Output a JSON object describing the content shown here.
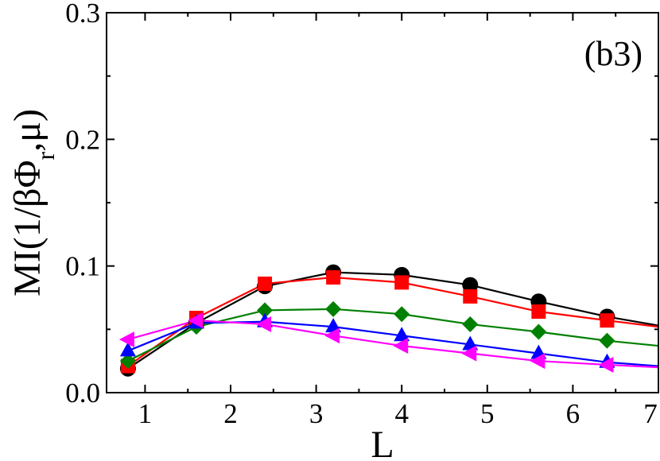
{
  "chart_data": {
    "type": "line",
    "panel_label": "(b3)",
    "xlabel": "L",
    "ylabel": "MI(1/βΦ_r,μ)",
    "xlim": [
      0.55,
      7
    ],
    "ylim": [
      0,
      0.3
    ],
    "x_ticks": [
      1,
      2,
      3,
      4,
      5,
      6,
      7
    ],
    "y_ticks": [
      0.0,
      0.1,
      0.2,
      0.3
    ],
    "y_tick_labels": [
      "0.0",
      "0.1",
      "0.2",
      "0.3"
    ],
    "grid": false,
    "series": [
      {
        "marker": "circle",
        "line_color": "#000000",
        "marker_color": "#000000",
        "x": [
          0.8,
          1.6,
          2.4,
          3.2,
          4.0,
          4.8,
          5.6,
          6.4,
          7.0
        ],
        "y": [
          0.019,
          0.055,
          0.084,
          0.095,
          0.093,
          0.085,
          0.072,
          0.06,
          0.053
        ]
      },
      {
        "marker": "square",
        "line_color": "#ff0000",
        "marker_color": "#ff0000",
        "x": [
          0.8,
          1.6,
          2.4,
          3.2,
          4.0,
          4.8,
          5.6,
          6.4,
          7.0
        ],
        "y": [
          0.021,
          0.059,
          0.086,
          0.091,
          0.087,
          0.076,
          0.064,
          0.057,
          0.052
        ]
      },
      {
        "marker": "diamond",
        "line_color": "#008000",
        "marker_color": "#008000",
        "x": [
          0.8,
          1.6,
          2.4,
          3.2,
          4.0,
          4.8,
          5.6,
          6.4,
          7.0
        ],
        "y": [
          0.025,
          0.052,
          0.065,
          0.066,
          0.062,
          0.054,
          0.048,
          0.041,
          0.037
        ]
      },
      {
        "marker": "triangle-up",
        "line_color": "#0000ff",
        "marker_color": "#0000ff",
        "x": [
          0.8,
          1.6,
          2.4,
          3.2,
          4.0,
          4.8,
          5.6,
          6.4,
          7.0
        ],
        "y": [
          0.033,
          0.055,
          0.056,
          0.052,
          0.045,
          0.038,
          0.031,
          0.024,
          0.021
        ]
      },
      {
        "marker": "triangle-left",
        "line_color": "#ff00ff",
        "marker_color": "#ff00ff",
        "x": [
          0.8,
          1.6,
          2.4,
          3.2,
          4.0,
          4.8,
          5.6,
          6.4,
          7.0
        ],
        "y": [
          0.042,
          0.057,
          0.054,
          0.045,
          0.037,
          0.031,
          0.025,
          0.022,
          0.02
        ]
      }
    ]
  }
}
